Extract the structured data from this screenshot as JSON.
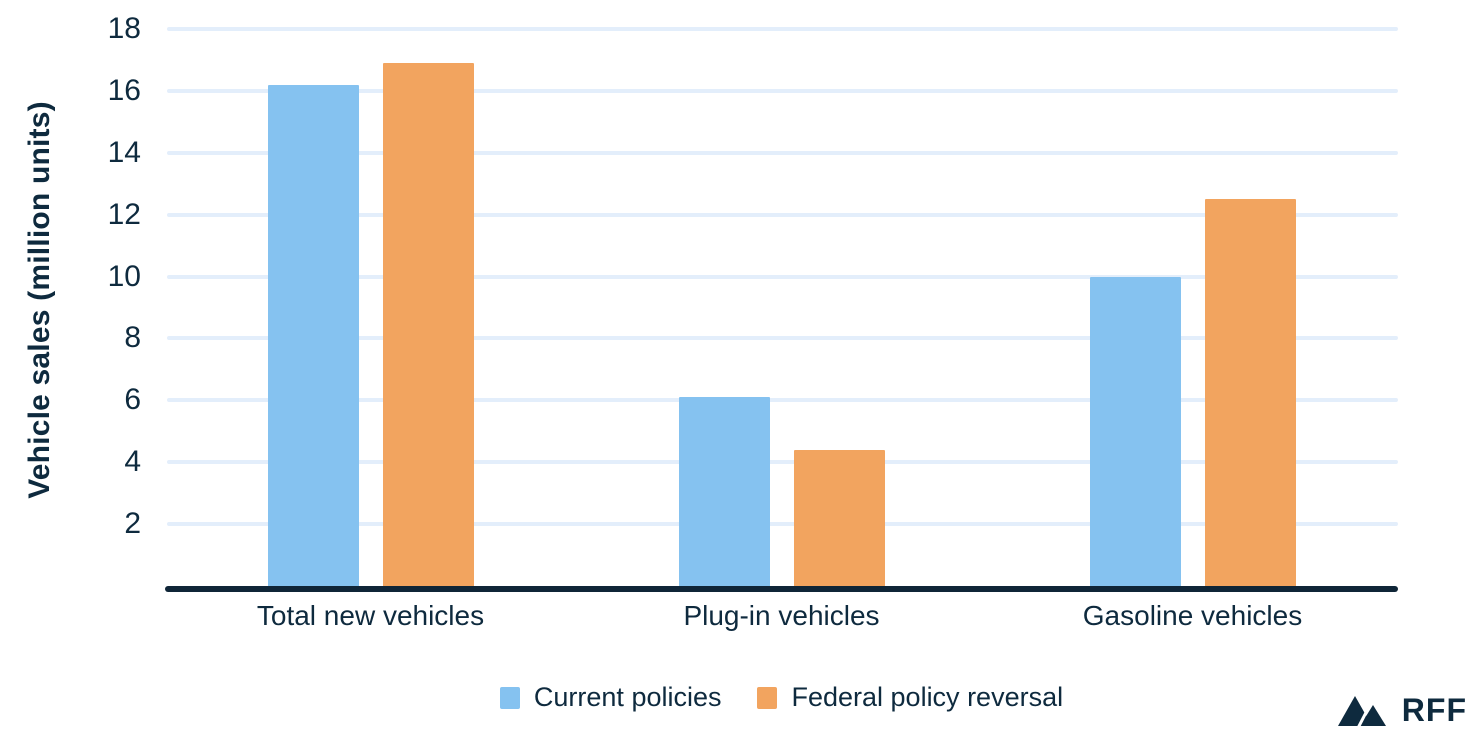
{
  "chart_data": {
    "type": "bar",
    "title": "",
    "xlabel": "",
    "ylabel": "Vehicle sales (million units)",
    "categories": [
      "Total new vehicles",
      "Plug-in vehicles",
      "Gasoline vehicles"
    ],
    "series": [
      {
        "name": "Current policies",
        "color": "#85c2f0",
        "values": [
          16.2,
          6.1,
          10.0
        ]
      },
      {
        "name": "Federal policy reversal",
        "color": "#f2a45f",
        "values": [
          16.9,
          4.4,
          12.5
        ]
      }
    ],
    "ylim": [
      0,
      18
    ],
    "yticks": [
      2,
      4,
      6,
      8,
      10,
      12,
      14,
      16,
      18
    ],
    "grid": "horizontal",
    "legend_position": "bottom"
  },
  "palette": {
    "text_navy": "#0e2a3e",
    "axis_line": "#0f2537",
    "gridline": "#e3eefb",
    "background": "#ffffff"
  },
  "branding": {
    "logo_text": "RFF",
    "logo_icon": "mountains-icon"
  }
}
